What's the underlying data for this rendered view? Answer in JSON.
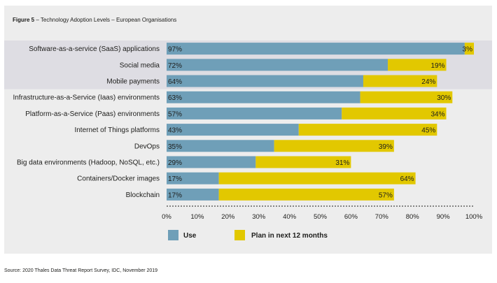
{
  "figure_title_prefix": "Figure 5",
  "figure_title_rest": " – Technology Adoption Levels – European Organisations",
  "source": "Source: 2020 Thales Data Threat Report Survey, IDC, November 2019",
  "colors": {
    "use": "#6f9fb8",
    "plan": "#e2c800",
    "highlight_band": "#dedde3",
    "panel": "#ededed"
  },
  "chart_data": {
    "type": "bar",
    "orientation": "horizontal",
    "stacked": true,
    "categories": [
      "Software-as-a-service (SaaS) applications",
      "Social media",
      "Mobile payments",
      "Infrastructure-as-a-Service (Iaas) environments",
      "Platform-as-a-Service (Paas) environments",
      "Internet of Things platforms",
      "DevOps",
      "Big data environments (Hadoop, NoSQL, etc.)",
      "Containers/Docker images",
      "Blockchain"
    ],
    "series": [
      {
        "name": "Use",
        "values": [
          97,
          72,
          64,
          63,
          57,
          43,
          35,
          29,
          17,
          17
        ]
      },
      {
        "name": "Plan in next 12 months",
        "values": [
          3,
          19,
          24,
          30,
          34,
          45,
          39,
          31,
          64,
          57
        ]
      }
    ],
    "xticks": [
      "0%",
      "10%",
      "20%",
      "30%",
      "40%",
      "50%",
      "60%",
      "70%",
      "80%",
      "90%",
      "100%"
    ],
    "xlim": [
      0,
      100
    ],
    "value_suffix": "%",
    "legend_position": "bottom-left",
    "grid": false
  }
}
